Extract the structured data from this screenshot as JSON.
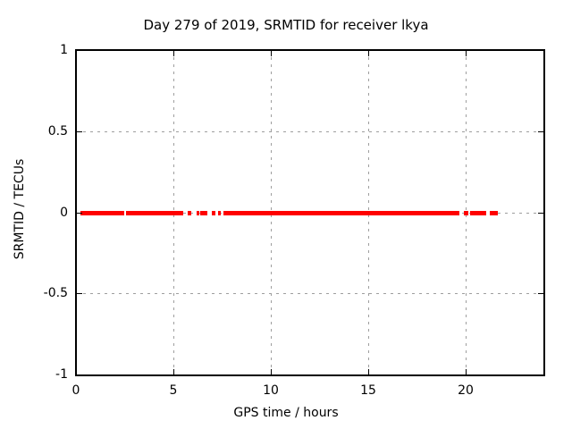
{
  "colors": {
    "background": "#ffffff",
    "plot_border": "#000000",
    "grid": "#9e9e9e",
    "text": "#000000",
    "series": "#ff0000"
  },
  "chart_data": {
    "type": "scatter",
    "title": "Day 279 of 2019, SRMTID for receiver lkya",
    "xlabel": "GPS time / hours",
    "ylabel": "SRMTID / TECUs",
    "xlim": [
      0,
      24
    ],
    "ylim": [
      -1,
      1
    ],
    "grid": {
      "style": "dashed",
      "color": "#9e9e9e",
      "x_lines_at": [
        5,
        10,
        15,
        20
      ],
      "y_lines_at": [
        -0.5,
        0,
        0.5
      ]
    },
    "xticks": [
      {
        "value": 0,
        "label": "0"
      },
      {
        "value": 5,
        "label": "5"
      },
      {
        "value": 10,
        "label": "10"
      },
      {
        "value": 15,
        "label": "15"
      },
      {
        "value": 20,
        "label": "20"
      }
    ],
    "yticks": [
      {
        "value": 1,
        "label": "1"
      },
      {
        "value": 0.5,
        "label": "0.5"
      },
      {
        "value": 0,
        "label": "0"
      },
      {
        "value": -0.5,
        "label": "-0.5"
      },
      {
        "value": -1,
        "label": "-1"
      }
    ],
    "legend": "none",
    "series": [
      {
        "name": "SRMTID",
        "marker": "filled-square",
        "color": "#ff0000",
        "y_value": 0,
        "x_segments_hours": [
          [
            0.21,
            2.48
          ],
          [
            2.57,
            5.52
          ],
          [
            5.75,
            5.93
          ],
          [
            6.19,
            6.32
          ],
          [
            6.36,
            6.73
          ],
          [
            6.96,
            7.14
          ],
          [
            7.31,
            7.42
          ],
          [
            7.57,
            19.69
          ],
          [
            19.9,
            20.14
          ],
          [
            20.24,
            21.08
          ],
          [
            21.25,
            21.65
          ]
        ]
      }
    ]
  }
}
